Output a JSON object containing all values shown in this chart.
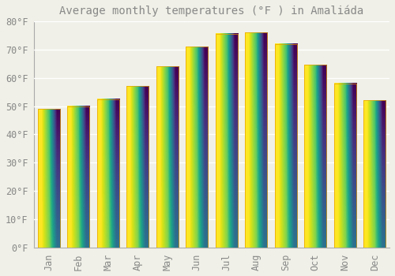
{
  "title": "Average monthly temperatures (°F ) in Amaliáda",
  "months": [
    "Jan",
    "Feb",
    "Mar",
    "Apr",
    "May",
    "Jun",
    "Jul",
    "Aug",
    "Sep",
    "Oct",
    "Nov",
    "Dec"
  ],
  "values": [
    49,
    50,
    52.5,
    57,
    64,
    71,
    75.5,
    76,
    72,
    64.5,
    58,
    52
  ],
  "bar_color_top": "#FFB300",
  "bar_color_bottom": "#FFD060",
  "bar_edge_color": "#E8A000",
  "background_color": "#F0F0E8",
  "grid_color": "#FFFFFF",
  "text_color": "#888888",
  "spine_color": "#AAAAAA",
  "ylim": [
    0,
    80
  ],
  "yticks": [
    0,
    10,
    20,
    30,
    40,
    50,
    60,
    70,
    80
  ],
  "title_fontsize": 10,
  "tick_fontsize": 8.5,
  "bar_width": 0.75
}
